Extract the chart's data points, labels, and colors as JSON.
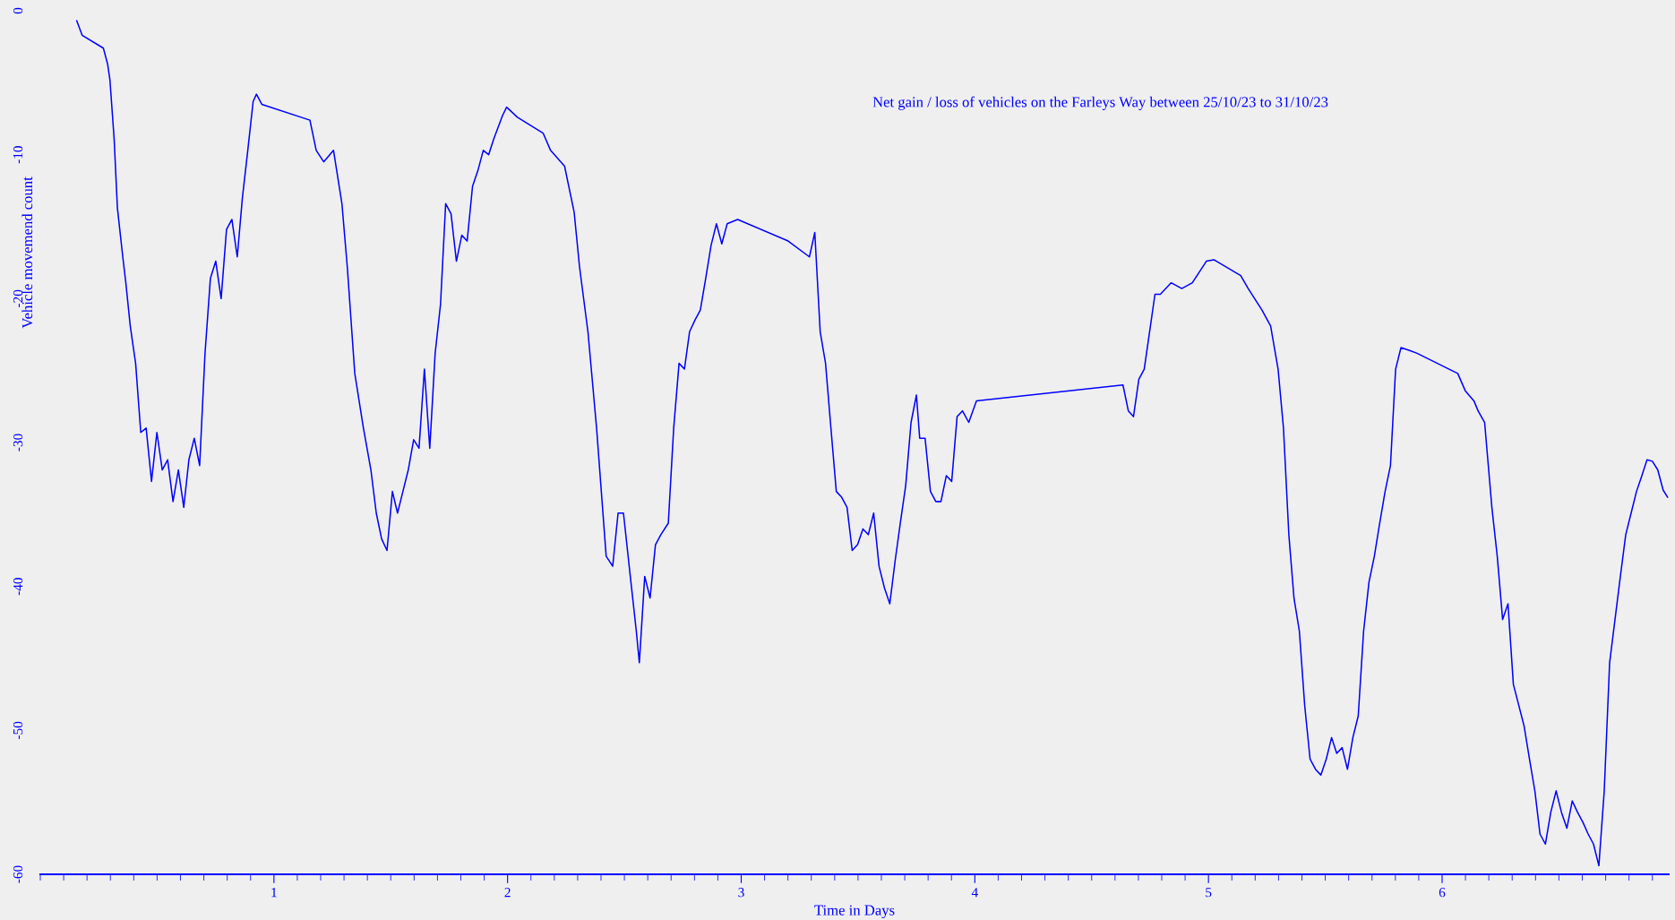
{
  "chart_data": {
    "type": "line",
    "title": "Net gain / loss of vehicles on the Farleys Way between 25/10/23 to 31/10/23",
    "xlabel": "Time in Days",
    "ylabel": "Vehicle movemend count",
    "xlim": [
      0,
      6.97
    ],
    "xticks": [
      1,
      2,
      3,
      4,
      5,
      6
    ],
    "ylim": [
      -60,
      0
    ],
    "yticks": [
      -60,
      -50,
      -40,
      -30,
      -20,
      -10,
      0
    ],
    "grid": false,
    "marker": "none",
    "line_style": "solid",
    "series": [
      {
        "color": "#0000ff",
        "x": [
          0.156,
          0.179,
          0.27,
          0.288,
          0.298,
          0.316,
          0.33,
          0.353,
          0.366,
          0.385,
          0.408,
          0.43,
          0.453,
          0.476,
          0.499,
          0.522,
          0.545,
          0.568,
          0.591,
          0.614,
          0.636,
          0.659,
          0.682,
          0.705,
          0.728,
          0.751,
          0.774,
          0.797,
          0.82,
          0.843,
          0.865,
          0.888,
          0.911,
          0.925,
          0.948,
          1.154,
          1.181,
          1.213,
          1.255,
          1.291,
          1.314,
          1.346,
          1.383,
          1.415,
          1.438,
          1.461,
          1.484,
          1.507,
          1.529,
          1.552,
          1.575,
          1.598,
          1.621,
          1.644,
          1.667,
          1.69,
          1.713,
          1.735,
          1.758,
          1.781,
          1.804,
          1.827,
          1.85,
          1.873,
          1.896,
          1.919,
          1.941,
          1.978,
          1.996,
          2.042,
          2.152,
          2.184,
          2.244,
          2.285,
          2.308,
          2.344,
          2.381,
          2.422,
          2.45,
          2.473,
          2.496,
          2.528,
          2.551,
          2.564,
          2.587,
          2.61,
          2.633,
          2.656,
          2.688,
          2.711,
          2.734,
          2.757,
          2.779,
          2.802,
          2.825,
          2.848,
          2.871,
          2.894,
          2.917,
          2.94,
          2.985,
          3.201,
          3.292,
          3.315,
          3.338,
          3.361,
          3.384,
          3.407,
          3.43,
          3.453,
          3.475,
          3.498,
          3.521,
          3.544,
          3.567,
          3.59,
          3.613,
          3.636,
          3.659,
          3.681,
          3.704,
          3.727,
          3.75,
          3.764,
          3.787,
          3.81,
          3.833,
          3.855,
          3.878,
          3.901,
          3.924,
          3.947,
          3.974,
          4.007,
          4.634,
          4.657,
          4.679,
          4.702,
          4.725,
          4.748,
          4.771,
          4.794,
          4.84,
          4.886,
          4.931,
          4.991,
          5.023,
          5.138,
          5.17,
          5.229,
          5.266,
          5.298,
          5.321,
          5.344,
          5.366,
          5.389,
          5.412,
          5.435,
          5.458,
          5.481,
          5.504,
          5.527,
          5.549,
          5.572,
          5.595,
          5.618,
          5.641,
          5.664,
          5.687,
          5.71,
          5.733,
          5.756,
          5.779,
          5.801,
          5.824,
          5.861,
          5.893,
          6.03,
          6.067,
          6.099,
          6.136,
          6.154,
          6.182,
          6.213,
          6.236,
          6.259,
          6.282,
          6.305,
          6.351,
          6.374,
          6.397,
          6.419,
          6.442,
          6.465,
          6.488,
          6.511,
          6.534,
          6.557,
          6.58,
          6.603,
          6.625,
          6.648,
          6.671,
          6.694,
          6.717,
          6.74,
          6.763,
          6.786,
          6.809,
          6.832,
          6.855,
          6.877,
          6.9,
          6.923,
          6.946,
          6.965
        ],
        "values": [
          -0.7,
          -1.7,
          -2.6,
          -3.7,
          -4.8,
          -8.9,
          -13.7,
          -17.1,
          -18.9,
          -21.9,
          -24.5,
          -29.3,
          -29.0,
          -32.7,
          -29.3,
          -31.9,
          -31.2,
          -34.1,
          -31.9,
          -34.5,
          -31.2,
          -29.7,
          -31.6,
          -23.8,
          -18.6,
          -17.4,
          -20.0,
          -15.2,
          -14.5,
          -17.1,
          -13.0,
          -9.7,
          -6.3,
          -5.8,
          -6.5,
          -7.6,
          -9.7,
          -10.5,
          -9.7,
          -13.4,
          -17.8,
          -25.2,
          -29.0,
          -31.9,
          -34.9,
          -36.7,
          -37.5,
          -33.4,
          -34.9,
          -33.4,
          -31.9,
          -29.8,
          -30.4,
          -24.9,
          -30.4,
          -23.8,
          -20.4,
          -13.4,
          -14.1,
          -17.4,
          -15.6,
          -16.0,
          -12.2,
          -11.1,
          -9.7,
          -10.0,
          -8.9,
          -7.3,
          -6.7,
          -7.4,
          -8.5,
          -9.7,
          -10.8,
          -14.0,
          -17.8,
          -22.3,
          -29.0,
          -37.9,
          -38.6,
          -34.9,
          -34.9,
          -39.7,
          -43.1,
          -45.3,
          -39.3,
          -40.8,
          -37.1,
          -36.4,
          -35.6,
          -29.0,
          -24.5,
          -24.9,
          -22.3,
          -21.5,
          -20.8,
          -18.6,
          -16.3,
          -14.8,
          -16.2,
          -14.8,
          -14.5,
          -16.0,
          -17.1,
          -15.4,
          -22.3,
          -24.5,
          -29.0,
          -33.4,
          -33.8,
          -34.5,
          -37.5,
          -37.1,
          -36.0,
          -36.4,
          -34.9,
          -38.6,
          -40.1,
          -41.2,
          -38.2,
          -35.6,
          -33.0,
          -28.6,
          -26.7,
          -29.7,
          -29.7,
          -33.4,
          -34.1,
          -34.1,
          -32.3,
          -32.7,
          -28.2,
          -27.8,
          -28.6,
          -27.1,
          -26.0,
          -27.8,
          -28.2,
          -25.6,
          -24.9,
          -22.3,
          -19.7,
          -19.7,
          -18.9,
          -19.3,
          -18.9,
          -17.4,
          -17.3,
          -18.4,
          -19.3,
          -20.8,
          -21.9,
          -24.9,
          -29.0,
          -36.4,
          -40.8,
          -43.1,
          -48.3,
          -52.0,
          -52.7,
          -53.1,
          -52.0,
          -50.5,
          -51.6,
          -51.2,
          -52.7,
          -50.5,
          -49.0,
          -43.1,
          -39.7,
          -37.9,
          -35.6,
          -33.4,
          -31.6,
          -24.9,
          -23.4,
          -23.6,
          -23.8,
          -24.9,
          -25.2,
          -26.4,
          -27.1,
          -27.8,
          -28.6,
          -34.5,
          -37.9,
          -42.3,
          -41.2,
          -46.8,
          -49.7,
          -52.0,
          -54.2,
          -57.2,
          -57.9,
          -55.7,
          -54.2,
          -55.7,
          -56.8,
          -54.9,
          -55.7,
          -56.4,
          -57.2,
          -57.9,
          -59.4,
          -54.2,
          -45.3,
          -42.3,
          -39.3,
          -36.4,
          -34.9,
          -33.4,
          -32.3,
          -31.2,
          -31.3,
          -31.9,
          -33.3,
          -33.8
        ]
      }
    ]
  }
}
